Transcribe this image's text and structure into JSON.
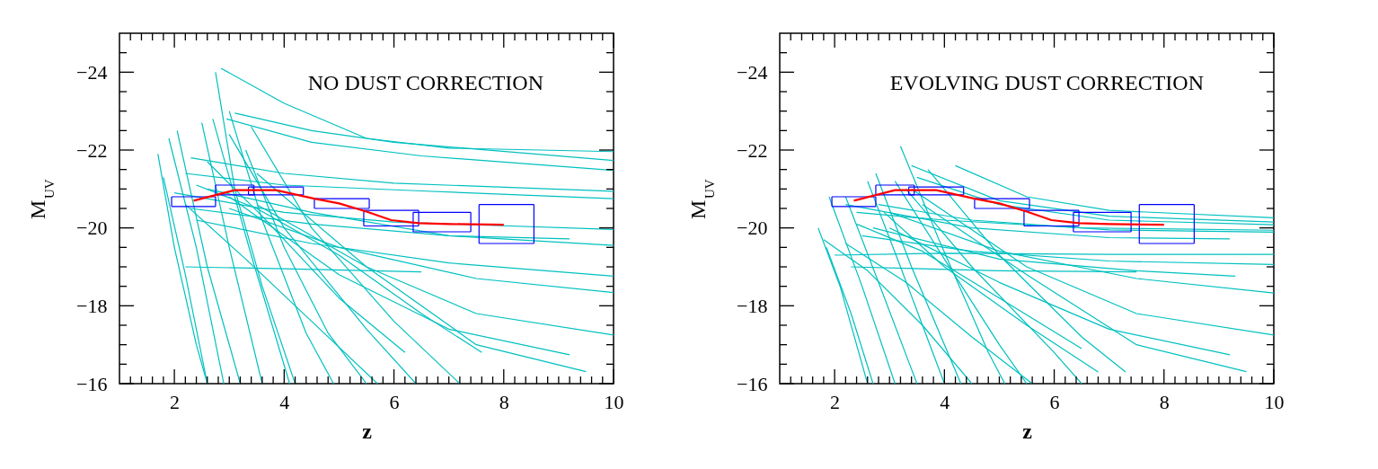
{
  "chart_data": [
    {
      "type": "line",
      "xlabel": "z",
      "ylabel": "M$_{UV}$",
      "annotations": [
        "NO DUST CORRECTION"
      ],
      "xlim": [
        1,
        10
      ],
      "ylim": [
        -16,
        -25
      ],
      "xticks": [
        {
          "value": 1.2,
          "label": null
        },
        {
          "value": 1.4,
          "label": null
        },
        {
          "value": 1.6,
          "label": null
        },
        {
          "value": 1.8,
          "label": null
        },
        2,
        {
          "value": 2.2,
          "label": null
        },
        {
          "value": 2.4,
          "label": null
        },
        {
          "value": 2.6,
          "label": null
        },
        {
          "value": 2.8,
          "label": null
        },
        {
          "value": 3,
          "label": null
        },
        {
          "value": 3.2,
          "label": null
        },
        {
          "value": 3.4,
          "label": null
        },
        {
          "value": 3.6,
          "label": null
        },
        {
          "value": 3.8,
          "label": null
        },
        4,
        {
          "value": 4.2,
          "label": null
        },
        {
          "value": 4.4,
          "label": null
        },
        {
          "value": 4.6,
          "label": null
        },
        {
          "value": 4.8,
          "label": null
        },
        {
          "value": 5,
          "label": null
        },
        {
          "value": 5.2,
          "label": null
        },
        {
          "value": 5.4,
          "label": null
        },
        {
          "value": 5.6,
          "label": null
        },
        {
          "value": 5.8,
          "label": null
        },
        6,
        {
          "value": 6.2,
          "label": null
        },
        {
          "value": 6.4,
          "label": null
        },
        {
          "value": 6.6,
          "label": null
        },
        {
          "value": 6.8,
          "label": null
        },
        {
          "value": 7,
          "label": null
        },
        {
          "value": 7.2,
          "label": null
        },
        {
          "value": 7.4,
          "label": null
        },
        {
          "value": 7.6,
          "label": null
        },
        {
          "value": 7.8,
          "label": null
        },
        8,
        {
          "value": 8.2,
          "label": null
        },
        {
          "value": 8.4,
          "label": null
        },
        {
          "value": 8.6,
          "label": null
        },
        {
          "value": 8.8,
          "label": null
        },
        {
          "value": 9,
          "label": null
        },
        {
          "value": 9.2,
          "label": null
        },
        {
          "value": 9.4,
          "label": null
        },
        {
          "value": 9.6,
          "label": null
        },
        {
          "value": 9.8,
          "label": null
        },
        10
      ],
      "yticks": [
        {
          "value": -24.5,
          "label": null
        },
        -24,
        {
          "value": -23.5,
          "label": null
        },
        {
          "value": -23,
          "label": null
        },
        {
          "value": -22.5,
          "label": null
        },
        -22,
        {
          "value": -21.5,
          "label": null
        },
        {
          "value": -21,
          "label": null
        },
        {
          "value": -20.5,
          "label": null
        },
        -20,
        {
          "value": -19.5,
          "label": null
        },
        {
          "value": -19,
          "label": null
        },
        {
          "value": -18.5,
          "label": null
        },
        -18,
        {
          "value": -17.5,
          "label": null
        },
        {
          "value": -17,
          "label": null
        },
        {
          "value": -16.5,
          "label": null
        },
        -16
      ],
      "grid": false,
      "series": [
        {
          "color": "#00c0c0",
          "x": [
            2.85,
            4,
            5.5,
            7,
            10
          ],
          "values": [
            -24.1,
            -23.2,
            -22.3,
            -22.05,
            -21.96
          ]
        },
        {
          "color": "#00c0c0",
          "x": [
            3.1,
            4.5,
            6,
            10
          ],
          "values": [
            -22.95,
            -22.5,
            -22.2,
            -21.73
          ]
        },
        {
          "color": "#00c0c0",
          "x": [
            2.95,
            4.5,
            6.5,
            10
          ],
          "values": [
            -22.8,
            -22.2,
            -21.85,
            -21.48
          ]
        },
        {
          "color": "#00c0c0",
          "x": [
            2.3,
            4,
            6,
            10
          ],
          "values": [
            -21.8,
            -21.4,
            -21.15,
            -20.94
          ]
        },
        {
          "color": "#00c0c0",
          "x": [
            2.2,
            4,
            6.5,
            10
          ],
          "values": [
            -21.4,
            -21.1,
            -20.95,
            -20.75
          ]
        },
        {
          "color": "#00c0c0",
          "x": [
            2.0,
            4,
            6,
            10
          ],
          "values": [
            -20.9,
            -20.4,
            -20.15,
            -19.96
          ]
        },
        {
          "color": "#00c0c0",
          "x": [
            2.3,
            4.5,
            7,
            9.2
          ],
          "values": [
            -20.5,
            -20.1,
            -19.8,
            -19.72
          ]
        },
        {
          "color": "#00c0c0",
          "x": [
            2.6,
            4.5,
            7,
            10
          ],
          "values": [
            -21.0,
            -20.4,
            -19.8,
            -19.55
          ]
        },
        {
          "color": "#00c0c0",
          "x": [
            2.4,
            4.5,
            7,
            10
          ],
          "values": [
            -20.2,
            -19.6,
            -19.1,
            -18.76
          ]
        },
        {
          "color": "#00c0c0",
          "x": [
            3.0,
            5,
            7.5,
            10
          ],
          "values": [
            -20.5,
            -19.5,
            -18.7,
            -18.34
          ]
        },
        {
          "color": "#00c0c0",
          "x": [
            2.2,
            4,
            6.5
          ],
          "values": [
            -19.0,
            -18.95,
            -18.87
          ]
        },
        {
          "color": "#00c0c0",
          "x": [
            3.5,
            5.5,
            7.5,
            10
          ],
          "values": [
            -20.6,
            -19.0,
            -17.8,
            -17.25
          ]
        },
        {
          "color": "#00c0c0",
          "x": [
            3.0,
            5,
            7,
            9.2
          ],
          "values": [
            -20.8,
            -18.8,
            -17.4,
            -16.74
          ]
        },
        {
          "color": "#00c0c0",
          "x": [
            3.5,
            5.5,
            7.5,
            9.5
          ],
          "values": [
            -21.4,
            -19.0,
            -17.0,
            -16.31
          ]
        },
        {
          "color": "#00c0c0",
          "x": [
            1.7,
            2.0,
            2.4,
            2.6
          ],
          "values": [
            -21.9,
            -19.5,
            -17.0,
            -16
          ]
        },
        {
          "color": "#00c0c0",
          "x": [
            1.8,
            2.2,
            2.6
          ],
          "values": [
            -21.3,
            -18.8,
            -16
          ]
        },
        {
          "color": "#00c0c0",
          "x": [
            1.9,
            2.4,
            2.9
          ],
          "values": [
            -22.3,
            -19.5,
            -16
          ]
        },
        {
          "color": "#00c0c0",
          "x": [
            2.05,
            2.6,
            3.2
          ],
          "values": [
            -22.5,
            -19.0,
            -16
          ]
        },
        {
          "color": "#00c0c0",
          "x": [
            2.5,
            3.0,
            3.6
          ],
          "values": [
            -22.7,
            -19.5,
            -16
          ]
        },
        {
          "color": "#00c0c0",
          "x": [
            2.7,
            3.4,
            4.1
          ],
          "values": [
            -22.8,
            -19.3,
            -16
          ]
        },
        {
          "color": "#00c0c0",
          "x": [
            2.75,
            3.1,
            3.6,
            4.2
          ],
          "values": [
            -24.0,
            -21.0,
            -18.5,
            -16
          ]
        },
        {
          "color": "#00c0c0",
          "x": [
            3.0,
            3.6,
            4.4,
            4.9
          ],
          "values": [
            -23.0,
            -20.2,
            -17.3,
            -16
          ]
        },
        {
          "color": "#00c0c0",
          "x": [
            3.3,
            4.0,
            4.8,
            5.5
          ],
          "values": [
            -22.0,
            -19.5,
            -17.3,
            -16
          ]
        },
        {
          "color": "#00c0c0",
          "x": [
            3.0,
            4.0,
            5.5,
            6.4
          ],
          "values": [
            -22.4,
            -20.0,
            -17.4,
            -16
          ]
        },
        {
          "color": "#00c0c0",
          "x": [
            3.4,
            4.5,
            6,
            7.2
          ],
          "values": [
            -22.6,
            -20.0,
            -17.6,
            -16
          ]
        },
        {
          "color": "#00c0c0",
          "x": [
            2.4,
            3.5,
            5,
            6.5,
            7.6
          ],
          "values": [
            -21.1,
            -20.5,
            -19.3,
            -17.8,
            -16.8
          ]
        },
        {
          "color": "#00c0c0",
          "x": [
            2.2,
            3.3,
            4.5,
            5.7
          ],
          "values": [
            -20.6,
            -19.2,
            -17.6,
            -16
          ]
        },
        {
          "color": "#00c0c0",
          "x": [
            2.6,
            3.6,
            5.0,
            6.2
          ],
          "values": [
            -21.7,
            -20.3,
            -18.2,
            -16.8
          ]
        },
        {
          "color": "#0000ff",
          "x": [
            1.95,
            2.75
          ],
          "values": [
            -20.8,
            -20.8
          ]
        },
        {
          "color": "#0000ff",
          "x": [
            1.95,
            2.75
          ],
          "values": [
            -20.55,
            -20.55
          ]
        },
        {
          "color": "#0000ff",
          "x": [
            1.95,
            1.95
          ],
          "values": [
            -20.8,
            -20.55
          ]
        },
        {
          "color": "#0000ff",
          "x": [
            2.75,
            2.75
          ],
          "values": [
            -20.8,
            -20.55
          ]
        },
        {
          "color": "#0000ff",
          "x": [
            2.75,
            3.45
          ],
          "values": [
            -21.1,
            -21.1
          ]
        },
        {
          "color": "#0000ff",
          "x": [
            2.75,
            3.45
          ],
          "values": [
            -20.85,
            -20.85
          ]
        },
        {
          "color": "#0000ff",
          "x": [
            2.75,
            2.75
          ],
          "values": [
            -21.1,
            -20.85
          ]
        },
        {
          "color": "#0000ff",
          "x": [
            3.45,
            3.45
          ],
          "values": [
            -21.1,
            -20.85
          ]
        },
        {
          "color": "#0000ff",
          "x": [
            3.35,
            4.35
          ],
          "values": [
            -21.05,
            -21.05
          ]
        },
        {
          "color": "#0000ff",
          "x": [
            3.35,
            4.35
          ],
          "values": [
            -20.85,
            -20.85
          ]
        },
        {
          "color": "#0000ff",
          "x": [
            3.35,
            3.35
          ],
          "values": [
            -21.05,
            -20.85
          ]
        },
        {
          "color": "#0000ff",
          "x": [
            4.35,
            4.35
          ],
          "values": [
            -21.05,
            -20.85
          ]
        },
        {
          "color": "#0000ff",
          "x": [
            4.55,
            5.55
          ],
          "values": [
            -20.75,
            -20.75
          ]
        },
        {
          "color": "#0000ff",
          "x": [
            4.55,
            5.55
          ],
          "values": [
            -20.5,
            -20.5
          ]
        },
        {
          "color": "#0000ff",
          "x": [
            4.55,
            4.55
          ],
          "values": [
            -20.75,
            -20.5
          ]
        },
        {
          "color": "#0000ff",
          "x": [
            5.55,
            5.55
          ],
          "values": [
            -20.75,
            -20.5
          ]
        },
        {
          "color": "#0000ff",
          "x": [
            5.45,
            6.45
          ],
          "values": [
            -20.45,
            -20.45
          ]
        },
        {
          "color": "#0000ff",
          "x": [
            5.45,
            6.45
          ],
          "values": [
            -20.05,
            -20.05
          ]
        },
        {
          "color": "#0000ff",
          "x": [
            5.45,
            5.45
          ],
          "values": [
            -20.45,
            -20.05
          ]
        },
        {
          "color": "#0000ff",
          "x": [
            6.45,
            6.45
          ],
          "values": [
            -20.45,
            -20.05
          ]
        },
        {
          "color": "#0000ff",
          "x": [
            6.35,
            7.4
          ],
          "values": [
            -20.4,
            -20.4
          ]
        },
        {
          "color": "#0000ff",
          "x": [
            6.35,
            7.4
          ],
          "values": [
            -19.9,
            -19.9
          ]
        },
        {
          "color": "#0000ff",
          "x": [
            6.35,
            6.35
          ],
          "values": [
            -20.4,
            -19.9
          ]
        },
        {
          "color": "#0000ff",
          "x": [
            7.4,
            7.4
          ],
          "values": [
            -20.4,
            -19.9
          ]
        },
        {
          "color": "#0000ff",
          "x": [
            7.55,
            8.55
          ],
          "values": [
            -20.6,
            -20.6
          ]
        },
        {
          "color": "#0000ff",
          "x": [
            7.55,
            8.55
          ],
          "values": [
            -19.6,
            -19.6
          ]
        },
        {
          "color": "#0000ff",
          "x": [
            7.55,
            7.55
          ],
          "values": [
            -20.6,
            -19.6
          ]
        },
        {
          "color": "#0000ff",
          "x": [
            8.55,
            8.55
          ],
          "values": [
            -20.6,
            -19.6
          ]
        },
        {
          "color": "#ff0000",
          "x": [
            2.35,
            3.1,
            3.85,
            4.55,
            5.0,
            5.5,
            5.95,
            6.45,
            7.0,
            8.0
          ],
          "values": [
            -20.7,
            -20.97,
            -20.97,
            -20.75,
            -20.63,
            -20.42,
            -20.2,
            -20.12,
            -20.1,
            -20.08
          ]
        }
      ]
    },
    {
      "type": "line",
      "xlabel": "z",
      "ylabel": "M$_{UV}$",
      "annotations": [
        "EVOLVING DUST CORRECTION"
      ],
      "xlim": [
        1,
        10
      ],
      "ylim": [
        -16,
        -25
      ],
      "xticks": [
        {
          "value": 1.2,
          "label": null
        },
        {
          "value": 1.4,
          "label": null
        },
        {
          "value": 1.6,
          "label": null
        },
        {
          "value": 1.8,
          "label": null
        },
        2,
        {
          "value": 2.2,
          "label": null
        },
        {
          "value": 2.4,
          "label": null
        },
        {
          "value": 2.6,
          "label": null
        },
        {
          "value": 2.8,
          "label": null
        },
        {
          "value": 3,
          "label": null
        },
        {
          "value": 3.2,
          "label": null
        },
        {
          "value": 3.4,
          "label": null
        },
        {
          "value": 3.6,
          "label": null
        },
        {
          "value": 3.8,
          "label": null
        },
        4,
        {
          "value": 4.2,
          "label": null
        },
        {
          "value": 4.4,
          "label": null
        },
        {
          "value": 4.6,
          "label": null
        },
        {
          "value": 4.8,
          "label": null
        },
        {
          "value": 5,
          "label": null
        },
        {
          "value": 5.2,
          "label": null
        },
        {
          "value": 5.4,
          "label": null
        },
        {
          "value": 5.6,
          "label": null
        },
        {
          "value": 5.8,
          "label": null
        },
        6,
        {
          "value": 6.2,
          "label": null
        },
        {
          "value": 6.4,
          "label": null
        },
        {
          "value": 6.6,
          "label": null
        },
        {
          "value": 6.8,
          "label": null
        },
        {
          "value": 7,
          "label": null
        },
        {
          "value": 7.2,
          "label": null
        },
        {
          "value": 7.4,
          "label": null
        },
        {
          "value": 7.6,
          "label": null
        },
        {
          "value": 7.8,
          "label": null
        },
        8,
        {
          "value": 8.2,
          "label": null
        },
        {
          "value": 8.4,
          "label": null
        },
        {
          "value": 8.6,
          "label": null
        },
        {
          "value": 8.8,
          "label": null
        },
        {
          "value": 9,
          "label": null
        },
        {
          "value": 9.2,
          "label": null
        },
        {
          "value": 9.4,
          "label": null
        },
        {
          "value": 9.6,
          "label": null
        },
        {
          "value": 9.8,
          "label": null
        },
        10
      ],
      "yticks": [
        {
          "value": -24.5,
          "label": null
        },
        -24,
        {
          "value": -23.5,
          "label": null
        },
        {
          "value": -23,
          "label": null
        },
        {
          "value": -22.5,
          "label": null
        },
        -22,
        {
          "value": -21.5,
          "label": null
        },
        {
          "value": -21,
          "label": null
        },
        {
          "value": -20.5,
          "label": null
        },
        -20,
        {
          "value": -19.5,
          "label": null
        },
        {
          "value": -19,
          "label": null
        },
        {
          "value": -18.5,
          "label": null
        },
        -18,
        {
          "value": -17.5,
          "label": null
        },
        {
          "value": -17,
          "label": null
        },
        {
          "value": -16.5,
          "label": null
        },
        -16
      ],
      "grid": false,
      "series": [
        {
          "color": "#00c0c0",
          "x": [
            4.2,
            5.5,
            7,
            10
          ],
          "values": [
            -21.6,
            -20.8,
            -20.45,
            -20.26
          ]
        },
        {
          "color": "#00c0c0",
          "x": [
            3.4,
            5,
            7,
            10
          ],
          "values": [
            -21.6,
            -20.7,
            -20.3,
            -20.15
          ]
        },
        {
          "color": "#00c0c0",
          "x": [
            3.5,
            5,
            7,
            10
          ],
          "values": [
            -21.3,
            -20.6,
            -20.2,
            -20.08
          ]
        },
        {
          "color": "#00c0c0",
          "x": [
            2.4,
            4,
            6.5,
            10
          ],
          "values": [
            -20.4,
            -20.2,
            -20.0,
            -19.94
          ]
        },
        {
          "color": "#00c0c0",
          "x": [
            2.8,
            4.5,
            7,
            10
          ],
          "values": [
            -20.6,
            -20.2,
            -19.95,
            -19.89
          ]
        },
        {
          "color": "#00c0c0",
          "x": [
            2.2,
            4.5,
            7,
            9.2
          ],
          "values": [
            -20.6,
            -20.0,
            -19.75,
            -19.72
          ]
        },
        {
          "color": "#00c0c0",
          "x": [
            2.0,
            4,
            7,
            10
          ],
          "values": [
            -19.3,
            -19.35,
            -19.32,
            -19.32
          ]
        },
        {
          "color": "#00c0c0",
          "x": [
            2.5,
            4.5,
            7,
            10
          ],
          "values": [
            -19.8,
            -19.4,
            -19.15,
            -19.06
          ]
        },
        {
          "color": "#00c0c0",
          "x": [
            2.7,
            5,
            7.5,
            9.3
          ],
          "values": [
            -20.0,
            -19.2,
            -18.9,
            -18.76
          ]
        },
        {
          "color": "#00c0c0",
          "x": [
            2.3,
            5,
            7.5
          ],
          "values": [
            -19.0,
            -18.9,
            -18.87
          ]
        },
        {
          "color": "#00c0c0",
          "x": [
            3.0,
            5,
            7.5,
            10
          ],
          "values": [
            -20.4,
            -19.4,
            -18.7,
            -18.33
          ]
        },
        {
          "color": "#00c0c0",
          "x": [
            3.4,
            5.5,
            7.5,
            10
          ],
          "values": [
            -21.0,
            -19.0,
            -17.8,
            -17.25
          ]
        },
        {
          "color": "#00c0c0",
          "x": [
            3.0,
            5,
            7,
            9.2
          ],
          "values": [
            -20.0,
            -18.6,
            -17.4,
            -16.74
          ]
        },
        {
          "color": "#00c0c0",
          "x": [
            3.6,
            5.5,
            7.5,
            9.5
          ],
          "values": [
            -20.6,
            -18.8,
            -17.0,
            -16.31
          ]
        },
        {
          "color": "#00c0c0",
          "x": [
            1.7,
            2.1,
            2.6
          ],
          "values": [
            -20.0,
            -18.5,
            -16
          ]
        },
        {
          "color": "#00c0c0",
          "x": [
            1.85,
            2.3,
            2.7
          ],
          "values": [
            -19.5,
            -17.8,
            -16
          ]
        },
        {
          "color": "#00c0c0",
          "x": [
            1.9,
            2.5,
            3.1
          ],
          "values": [
            -20.8,
            -18.5,
            -16
          ]
        },
        {
          "color": "#00c0c0",
          "x": [
            2.2,
            2.8,
            3.5
          ],
          "values": [
            -20.8,
            -18.6,
            -16
          ]
        },
        {
          "color": "#00c0c0",
          "x": [
            2.6,
            3.2,
            4.0
          ],
          "values": [
            -21.2,
            -19.0,
            -16
          ]
        },
        {
          "color": "#00c0c0",
          "x": [
            2.75,
            3.4,
            4.3
          ],
          "values": [
            -21.4,
            -19.0,
            -16
          ]
        },
        {
          "color": "#00c0c0",
          "x": [
            3.2,
            3.9,
            4.8,
            5.1
          ],
          "values": [
            -22.1,
            -19.7,
            -16.8,
            -16
          ]
        },
        {
          "color": "#00c0c0",
          "x": [
            3.1,
            4.0,
            5.0,
            5.5
          ],
          "values": [
            -21.2,
            -19.2,
            -17.0,
            -16
          ]
        },
        {
          "color": "#00c0c0",
          "x": [
            3.3,
            4.5,
            6.0,
            6.5
          ],
          "values": [
            -21.0,
            -19.0,
            -16.8,
            -16
          ]
        },
        {
          "color": "#00c0c0",
          "x": [
            3.7,
            5.0,
            6.5,
            7.3
          ],
          "values": [
            -21.5,
            -19.3,
            -17.2,
            -16.3
          ]
        },
        {
          "color": "#00c0c0",
          "x": [
            2.4,
            3.6,
            5.0,
            6.5
          ],
          "values": [
            -20.1,
            -19.4,
            -18.2,
            -16.9
          ]
        },
        {
          "color": "#00c0c0",
          "x": [
            2.2,
            3.3,
            4.5,
            5.6
          ],
          "values": [
            -19.6,
            -18.6,
            -17.2,
            -16
          ]
        },
        {
          "color": "#00c0c0",
          "x": [
            2.9,
            4.0,
            5.5,
            6.8
          ],
          "values": [
            -20.4,
            -19.0,
            -17.5,
            -16.3
          ]
        },
        {
          "color": "#00c0c0",
          "x": [
            1.8,
            2.6,
            3.6,
            4.5
          ],
          "values": [
            -19.7,
            -18.9,
            -17.5,
            -16
          ]
        },
        {
          "color": "#0000ff",
          "x": [
            1.95,
            2.75
          ],
          "values": [
            -20.8,
            -20.8
          ]
        },
        {
          "color": "#0000ff",
          "x": [
            1.95,
            2.75
          ],
          "values": [
            -20.55,
            -20.55
          ]
        },
        {
          "color": "#0000ff",
          "x": [
            1.95,
            1.95
          ],
          "values": [
            -20.8,
            -20.55
          ]
        },
        {
          "color": "#0000ff",
          "x": [
            2.75,
            2.75
          ],
          "values": [
            -20.8,
            -20.55
          ]
        },
        {
          "color": "#0000ff",
          "x": [
            2.75,
            3.45
          ],
          "values": [
            -21.1,
            -21.1
          ]
        },
        {
          "color": "#0000ff",
          "x": [
            2.75,
            3.45
          ],
          "values": [
            -20.85,
            -20.85
          ]
        },
        {
          "color": "#0000ff",
          "x": [
            2.75,
            2.75
          ],
          "values": [
            -21.1,
            -20.85
          ]
        },
        {
          "color": "#0000ff",
          "x": [
            3.45,
            3.45
          ],
          "values": [
            -21.1,
            -20.85
          ]
        },
        {
          "color": "#0000ff",
          "x": [
            3.35,
            4.35
          ],
          "values": [
            -21.05,
            -21.05
          ]
        },
        {
          "color": "#0000ff",
          "x": [
            3.35,
            4.35
          ],
          "values": [
            -20.85,
            -20.85
          ]
        },
        {
          "color": "#0000ff",
          "x": [
            3.35,
            3.35
          ],
          "values": [
            -21.05,
            -20.85
          ]
        },
        {
          "color": "#0000ff",
          "x": [
            4.35,
            4.35
          ],
          "values": [
            -21.05,
            -20.85
          ]
        },
        {
          "color": "#0000ff",
          "x": [
            4.55,
            5.55
          ],
          "values": [
            -20.75,
            -20.75
          ]
        },
        {
          "color": "#0000ff",
          "x": [
            4.55,
            5.55
          ],
          "values": [
            -20.5,
            -20.5
          ]
        },
        {
          "color": "#0000ff",
          "x": [
            4.55,
            4.55
          ],
          "values": [
            -20.75,
            -20.5
          ]
        },
        {
          "color": "#0000ff",
          "x": [
            5.55,
            5.55
          ],
          "values": [
            -20.75,
            -20.5
          ]
        },
        {
          "color": "#0000ff",
          "x": [
            5.45,
            6.45
          ],
          "values": [
            -20.45,
            -20.45
          ]
        },
        {
          "color": "#0000ff",
          "x": [
            5.45,
            6.45
          ],
          "values": [
            -20.05,
            -20.05
          ]
        },
        {
          "color": "#0000ff",
          "x": [
            5.45,
            5.45
          ],
          "values": [
            -20.45,
            -20.05
          ]
        },
        {
          "color": "#0000ff",
          "x": [
            6.45,
            6.45
          ],
          "values": [
            -20.45,
            -20.05
          ]
        },
        {
          "color": "#0000ff",
          "x": [
            6.35,
            7.4
          ],
          "values": [
            -20.4,
            -20.4
          ]
        },
        {
          "color": "#0000ff",
          "x": [
            6.35,
            7.4
          ],
          "values": [
            -19.9,
            -19.9
          ]
        },
        {
          "color": "#0000ff",
          "x": [
            6.35,
            6.35
          ],
          "values": [
            -20.4,
            -19.9
          ]
        },
        {
          "color": "#0000ff",
          "x": [
            7.4,
            7.4
          ],
          "values": [
            -20.4,
            -19.9
          ]
        },
        {
          "color": "#0000ff",
          "x": [
            7.55,
            8.55
          ],
          "values": [
            -20.6,
            -20.6
          ]
        },
        {
          "color": "#0000ff",
          "x": [
            7.55,
            8.55
          ],
          "values": [
            -19.6,
            -19.6
          ]
        },
        {
          "color": "#0000ff",
          "x": [
            7.55,
            7.55
          ],
          "values": [
            -20.6,
            -19.6
          ]
        },
        {
          "color": "#0000ff",
          "x": [
            8.55,
            8.55
          ],
          "values": [
            -20.6,
            -19.6
          ]
        },
        {
          "color": "#ff0000",
          "x": [
            2.35,
            3.1,
            3.85,
            4.55,
            5.0,
            5.5,
            5.95,
            6.45,
            7.0,
            8.0
          ],
          "values": [
            -20.7,
            -20.97,
            -20.97,
            -20.75,
            -20.63,
            -20.42,
            -20.2,
            -20.12,
            -20.1,
            -20.08
          ]
        }
      ]
    }
  ]
}
